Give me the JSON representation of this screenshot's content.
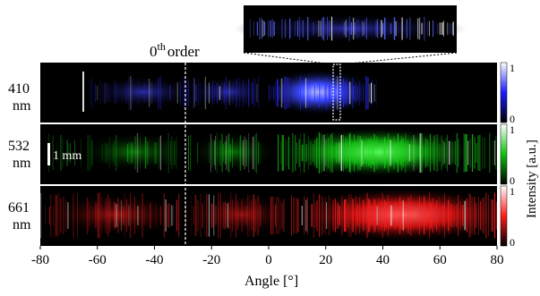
{
  "figure": {
    "order_label": "0",
    "order_sup": "th",
    "order_suffix": "order",
    "scale_bar": "1 mm",
    "panels": [
      {
        "wavelength": "410",
        "unit": "nm",
        "color": "#2a2aff",
        "colorbar_top": "1",
        "colorbar_bottom": "0"
      },
      {
        "wavelength": "532",
        "unit": "nm",
        "color": "#19d419",
        "colorbar_top": "1",
        "colorbar_bottom": "0"
      },
      {
        "wavelength": "661",
        "unit": "nm",
        "color": "#ff2020",
        "colorbar_top": "1",
        "colorbar_bottom": "0"
      }
    ],
    "xaxis": {
      "label": "Angle [°]",
      "ticks": [
        "-80",
        "-60",
        "-40",
        "-20",
        "0",
        "20",
        "40",
        "60",
        "80"
      ],
      "range": [
        -80,
        80
      ]
    },
    "colorbar_label": "Intensity [a.u.]"
  }
}
